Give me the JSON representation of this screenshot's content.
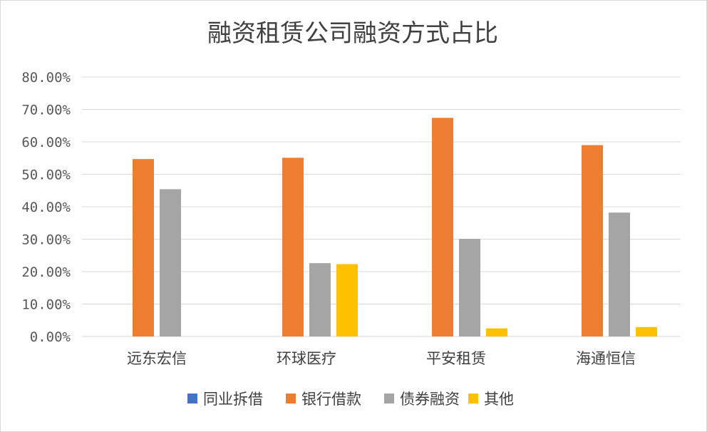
{
  "chart_data": {
    "type": "bar",
    "title": "融资租赁公司融资方式占比",
    "categories": [
      "远东宏信",
      "环球医疗",
      "平安租赁",
      "海通恒信"
    ],
    "series": [
      {
        "name": "同业拆借",
        "color": "#4472C4",
        "values": [
          0,
          0,
          0,
          0
        ]
      },
      {
        "name": "银行借款",
        "color": "#ED7D31",
        "values": [
          54.7,
          55.1,
          67.4,
          59.0
        ]
      },
      {
        "name": "债券融资",
        "color": "#A5A5A5",
        "values": [
          45.4,
          22.6,
          30.1,
          38.2
        ]
      },
      {
        "name": "其他",
        "color": "#FFC000",
        "values": [
          0,
          22.3,
          2.5,
          2.9
        ]
      }
    ],
    "ylim": [
      0,
      80
    ],
    "yticks": [
      "0.00%",
      "10.00%",
      "20.00%",
      "30.00%",
      "40.00%",
      "50.00%",
      "60.00%",
      "70.00%",
      "80.00%"
    ],
    "grid": true,
    "legend": "bottom",
    "xlabel": "",
    "ylabel": ""
  }
}
